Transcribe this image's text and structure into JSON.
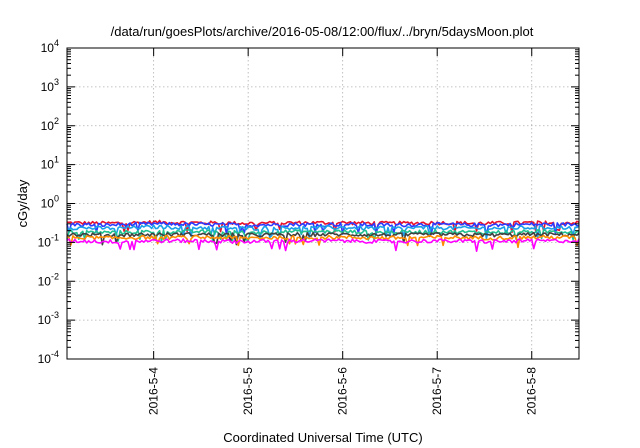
{
  "chart_data": {
    "type": "line",
    "title": "/data/run/goesPlots/archive/2016-05-08/12:00/flux/../bryn/5daysMoon.plot",
    "xlabel": "Coordinated Universal Time (UTC)",
    "ylabel": "cGy/day",
    "x_scale": "time",
    "x_ticks": [
      "2016-5-4",
      "2016-5-5",
      "2016-5-6",
      "2016-5-7",
      "2016-5-8"
    ],
    "x_range": [
      "2016-05-03T02:00",
      "2016-05-08T12:00"
    ],
    "y_scale": "log",
    "ylim": [
      0.0001,
      10000
    ],
    "y_ticks": [
      {
        "base": "10",
        "exp": "-4",
        "value": 0.0001
      },
      {
        "base": "10",
        "exp": "-3",
        "value": 0.001
      },
      {
        "base": "10",
        "exp": "-2",
        "value": 0.01
      },
      {
        "base": "10",
        "exp": "-1",
        "value": 0.1
      },
      {
        "base": "10",
        "exp": "0",
        "value": 1
      },
      {
        "base": "10",
        "exp": "1",
        "value": 10
      },
      {
        "base": "10",
        "exp": "2",
        "value": 100
      },
      {
        "base": "10",
        "exp": "3",
        "value": 1000
      },
      {
        "base": "10",
        "exp": "4",
        "value": 10000
      }
    ],
    "grid": true,
    "x": [
      "2016-05-03T02:00",
      "2016-05-03T12:00",
      "2016-05-04T00:00",
      "2016-05-04T12:00",
      "2016-05-05T00:00",
      "2016-05-05T12:00",
      "2016-05-06T00:00",
      "2016-05-06T12:00",
      "2016-05-07T00:00",
      "2016-05-07T12:00",
      "2016-05-08T00:00",
      "2016-05-08T12:00"
    ],
    "series": [
      {
        "color": "#e8112d",
        "values": [
          0.32,
          0.31,
          0.33,
          0.32,
          0.31,
          0.32,
          0.32,
          0.31,
          0.32,
          0.31,
          0.32,
          0.32
        ]
      },
      {
        "color": "#2b3aff",
        "values": [
          0.29,
          0.28,
          0.3,
          0.29,
          0.28,
          0.29,
          0.29,
          0.28,
          0.29,
          0.28,
          0.29,
          0.29
        ]
      },
      {
        "color": "#1aa0e8",
        "values": [
          0.24,
          0.23,
          0.25,
          0.24,
          0.23,
          0.24,
          0.24,
          0.23,
          0.24,
          0.23,
          0.24,
          0.24
        ]
      },
      {
        "color": "#20c090",
        "values": [
          0.19,
          0.18,
          0.19,
          0.19,
          0.18,
          0.19,
          0.19,
          0.18,
          0.19,
          0.18,
          0.19,
          0.19
        ]
      },
      {
        "color": "#404040",
        "values": [
          0.16,
          0.155,
          0.16,
          0.16,
          0.155,
          0.16,
          0.16,
          0.155,
          0.16,
          0.155,
          0.16,
          0.16
        ]
      },
      {
        "color": "#ff8c00",
        "values": [
          0.135,
          0.13,
          0.135,
          0.135,
          0.13,
          0.135,
          0.135,
          0.13,
          0.135,
          0.13,
          0.135,
          0.135
        ]
      },
      {
        "color": "#ff00ff",
        "values": [
          0.11,
          0.105,
          0.11,
          0.11,
          0.105,
          0.11,
          0.11,
          0.105,
          0.11,
          0.105,
          0.11,
          0.11
        ]
      }
    ]
  }
}
